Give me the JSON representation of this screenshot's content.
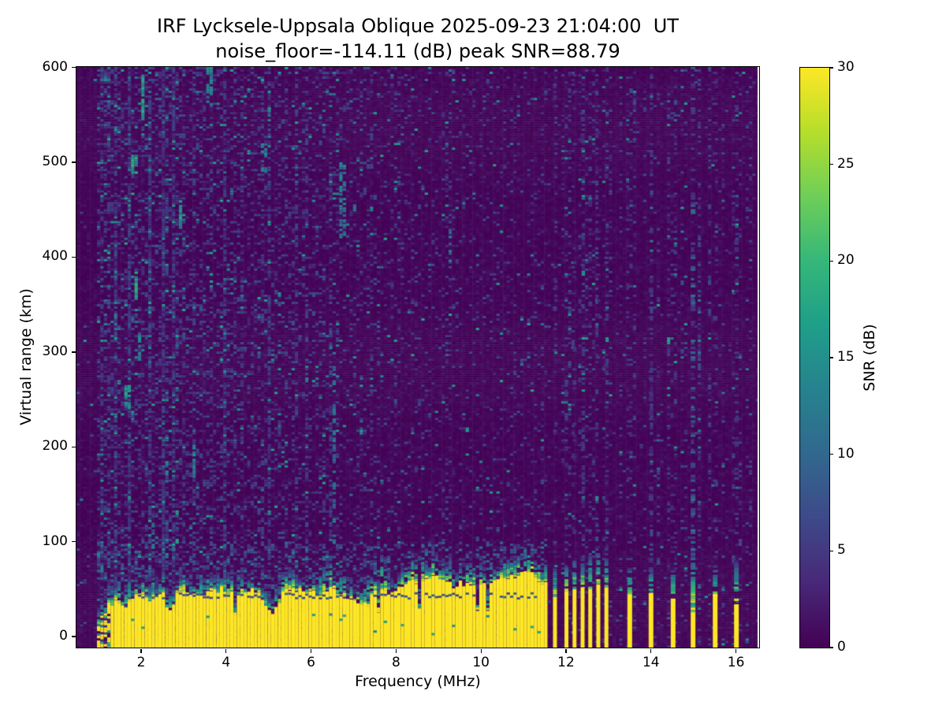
{
  "title": {
    "line1": "IRF Lycksele-Uppsala Oblique 2025-09-23 21:04:00  UT",
    "line2": "noise_floor=-114.11 (dB) peak SNR=88.79"
  },
  "axes": {
    "xlabel": "Frequency (MHz)",
    "ylabel": "Virtual range (km)",
    "x_ticks": [
      2,
      4,
      6,
      8,
      10,
      12,
      14,
      16
    ],
    "y_ticks": [
      0,
      100,
      200,
      300,
      400,
      500,
      600
    ],
    "xlim": [
      0.48,
      16.55
    ],
    "ylim": [
      -12,
      600
    ]
  },
  "colorbar": {
    "label": "SNR (dB)",
    "ticks": [
      0,
      5,
      10,
      15,
      20,
      25,
      30
    ],
    "vmin": 0,
    "vmax": 30,
    "colormap": "viridis"
  },
  "colors": {
    "background_low": "#440154",
    "peak": "#fde725",
    "viridis_stops": [
      "#440154",
      "#482878",
      "#3e4989",
      "#31688e",
      "#26828e",
      "#1f9e89",
      "#35b779",
      "#6ece58",
      "#b5de2b",
      "#fde725"
    ]
  },
  "chart_data": {
    "type": "heatmap",
    "title": "IRF Lycksele-Uppsala Oblique 2025-09-23 21:04:00  UT",
    "subtitle": "noise_floor=-114.11 (dB) peak SNR=88.79",
    "xlabel": "Frequency (MHz)",
    "ylabel": "Virtual range (km)",
    "zlabel": "SNR (dB)",
    "xlim": [
      0.48,
      16.55
    ],
    "ylim": [
      -12,
      600
    ],
    "zlim": [
      0,
      30
    ],
    "seed": 1337,
    "ground_band": {
      "start_mhz": 0.93,
      "end_mhz": 11.57,
      "patchy_below_mhz": 1.28,
      "top_profile_km": [
        [
          0.95,
          12
        ],
        [
          1.1,
          22
        ],
        [
          1.25,
          30
        ],
        [
          1.4,
          34
        ],
        [
          1.55,
          38
        ],
        [
          1.62,
          26
        ],
        [
          1.75,
          40
        ],
        [
          2.0,
          44
        ],
        [
          2.2,
          40
        ],
        [
          2.5,
          47
        ],
        [
          2.67,
          22
        ],
        [
          2.8,
          42
        ],
        [
          3.0,
          49
        ],
        [
          3.3,
          43
        ],
        [
          3.6,
          45
        ],
        [
          3.9,
          48
        ],
        [
          4.2,
          44
        ],
        [
          4.5,
          49
        ],
        [
          4.8,
          43
        ],
        [
          5.1,
          22
        ],
        [
          5.35,
          48
        ],
        [
          5.6,
          51
        ],
        [
          5.9,
          46
        ],
        [
          6.2,
          44
        ],
        [
          6.5,
          52
        ],
        [
          6.8,
          43
        ],
        [
          7.1,
          39
        ],
        [
          7.35,
          30
        ],
        [
          7.5,
          52
        ],
        [
          7.75,
          44
        ],
        [
          8.0,
          48
        ],
        [
          8.3,
          55
        ],
        [
          8.6,
          60
        ],
        [
          8.9,
          63
        ],
        [
          9.15,
          58
        ],
        [
          9.45,
          53
        ],
        [
          9.75,
          57
        ],
        [
          10.05,
          53
        ],
        [
          10.35,
          60
        ],
        [
          10.65,
          64
        ],
        [
          10.95,
          65
        ],
        [
          11.2,
          66
        ],
        [
          11.4,
          60
        ],
        [
          11.57,
          55
        ]
      ],
      "fringe_extra_km": [
        [
          0.95,
          10
        ],
        [
          1.4,
          26
        ],
        [
          2.0,
          16
        ],
        [
          2.5,
          28
        ],
        [
          3.0,
          22
        ],
        [
          3.5,
          15
        ],
        [
          4.0,
          20
        ],
        [
          4.5,
          16
        ],
        [
          5.0,
          14
        ],
        [
          5.35,
          22
        ],
        [
          6.0,
          16
        ],
        [
          6.5,
          26
        ],
        [
          7.0,
          14
        ],
        [
          7.5,
          46
        ],
        [
          8.0,
          18
        ],
        [
          8.3,
          26
        ],
        [
          8.9,
          28
        ],
        [
          9.4,
          18
        ],
        [
          9.75,
          36
        ],
        [
          10.2,
          18
        ],
        [
          10.65,
          28
        ],
        [
          11.2,
          34
        ],
        [
          11.57,
          20
        ]
      ],
      "artifact_line_km": 44
    },
    "stripes": [
      {
        "f": 11.74,
        "top_km": 42,
        "fringe_km": 72
      },
      {
        "f": 12.01,
        "top_km": 48,
        "fringe_km": 78
      },
      {
        "f": 12.2,
        "top_km": 50,
        "fringe_km": 80
      },
      {
        "f": 12.39,
        "top_km": 52,
        "fringe_km": 82
      },
      {
        "f": 12.57,
        "top_km": 52,
        "fringe_km": 85
      },
      {
        "f": 12.76,
        "top_km": 55,
        "fringe_km": 88
      },
      {
        "f": 12.95,
        "top_km": 52,
        "fringe_km": 82
      },
      {
        "f": 13.5,
        "top_km": 45,
        "fringe_km": 72
      },
      {
        "f": 14.0,
        "top_km": 46,
        "fringe_km": 73
      },
      {
        "f": 14.52,
        "top_km": 40,
        "fringe_km": 70
      },
      {
        "f": 14.99,
        "top_km": 27,
        "fringe_km": 88,
        "dotted_tall": true
      },
      {
        "f": 15.51,
        "top_km": 44,
        "fringe_km": 75
      },
      {
        "f": 16.01,
        "top_km": 34,
        "fringe_km": 80
      }
    ],
    "comb_step_mhz": 0.19,
    "noise": {
      "bg_max_db": 1.6,
      "dash_density_left": 0.3,
      "dash_density_mid": 0.12,
      "dash_density_min": 0.08,
      "bright_fraction": 0.1,
      "comb_density": 0.14,
      "sparse_density": 0.012,
      "fringe_zone_top_km": 100,
      "fringe_zone_density": 0.18
    },
    "feature_streaks": [
      [
        1.83,
        488,
        508,
        17,
        0.9
      ],
      [
        1.68,
        240,
        265,
        15,
        0.8
      ],
      [
        1.87,
        355,
        385,
        16,
        0.85
      ],
      [
        2.06,
        545,
        592,
        16,
        0.85
      ],
      [
        2.95,
        430,
        460,
        15,
        0.8
      ],
      [
        2.6,
        160,
        185,
        13,
        0.7
      ],
      [
        3.25,
        168,
        205,
        14,
        0.7
      ],
      [
        6.75,
        420,
        500,
        12,
        0.6
      ],
      [
        6.55,
        95,
        300,
        11,
        0.45
      ],
      [
        9.3,
        395,
        430,
        11,
        0.5
      ],
      [
        4.9,
        490,
        520,
        12,
        0.5
      ],
      [
        2.3,
        90,
        130,
        13,
        0.6
      ],
      [
        1.95,
        290,
        320,
        14,
        0.7
      ],
      [
        3.6,
        560,
        600,
        13,
        0.6
      ]
    ]
  }
}
